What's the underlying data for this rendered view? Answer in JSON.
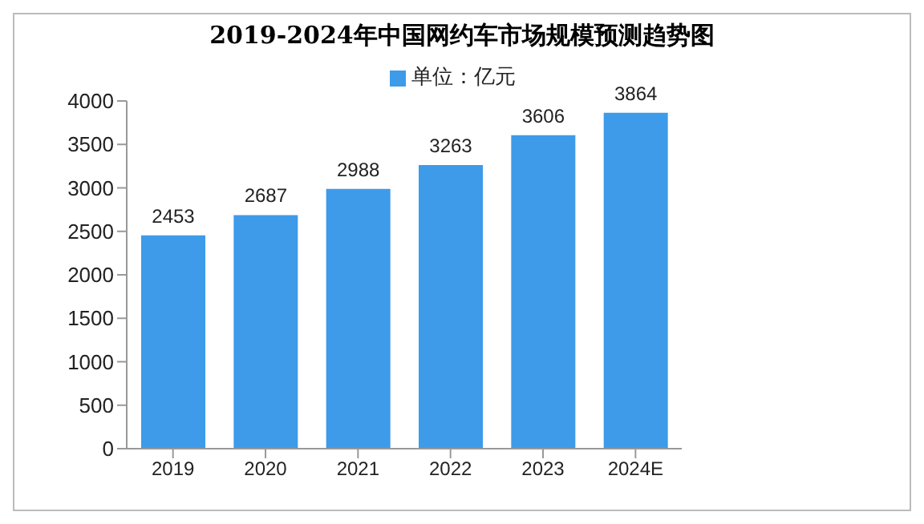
{
  "chart_data": {
    "type": "bar",
    "title": "2019-2024年中国网约车市场规模预测趋势图",
    "categories": [
      "2019",
      "2020",
      "2021",
      "2022",
      "2023",
      "2024E"
    ],
    "series": [
      {
        "name": "单位：亿元",
        "color": "#3d9be9",
        "values": [
          2453,
          2687,
          2988,
          3263,
          3606,
          3864
        ]
      }
    ],
    "ylim": [
      0,
      4000
    ],
    "yticks": [
      0,
      500,
      1000,
      1500,
      2000,
      2500,
      3000,
      3500,
      4000
    ],
    "data_labels": true,
    "legend": "top",
    "grid": false
  }
}
